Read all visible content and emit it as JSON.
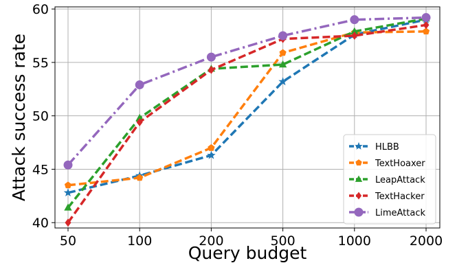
{
  "chart_data": {
    "type": "line",
    "title": "",
    "xlabel": "Query budget",
    "ylabel": "Attack success rate",
    "categories": [
      "50",
      "100",
      "200",
      "500",
      "1000",
      "2000"
    ],
    "ylim": [
      39.5,
      60.2
    ],
    "yticks": [
      40,
      45,
      50,
      55,
      60
    ],
    "grid": true,
    "legend_position": "bottom-right",
    "series": [
      {
        "name": "HLBB",
        "values": [
          42.8,
          44.4,
          46.3,
          53.2,
          57.6,
          59.0
        ],
        "color": "#1f77b4",
        "marker": "star",
        "dash": "dashed"
      },
      {
        "name": "TextHoaxer",
        "values": [
          43.5,
          44.2,
          47.0,
          55.9,
          57.8,
          57.9
        ],
        "color": "#ff7f0e",
        "marker": "pentagon",
        "dash": "dashed"
      },
      {
        "name": "LeapAttack",
        "values": [
          41.4,
          49.8,
          54.4,
          54.8,
          57.9,
          59.1
        ],
        "color": "#2ca02c",
        "marker": "triangle",
        "dash": "dashed"
      },
      {
        "name": "TextHacker",
        "values": [
          40.0,
          49.4,
          54.3,
          57.2,
          57.5,
          58.5
        ],
        "color": "#d62728",
        "marker": "diamond",
        "dash": "dashed"
      },
      {
        "name": "LimeAttack",
        "values": [
          45.4,
          52.9,
          55.5,
          57.5,
          59.0,
          59.2
        ],
        "color": "#9467bd",
        "marker": "circle",
        "dash": "dashdot"
      }
    ]
  }
}
